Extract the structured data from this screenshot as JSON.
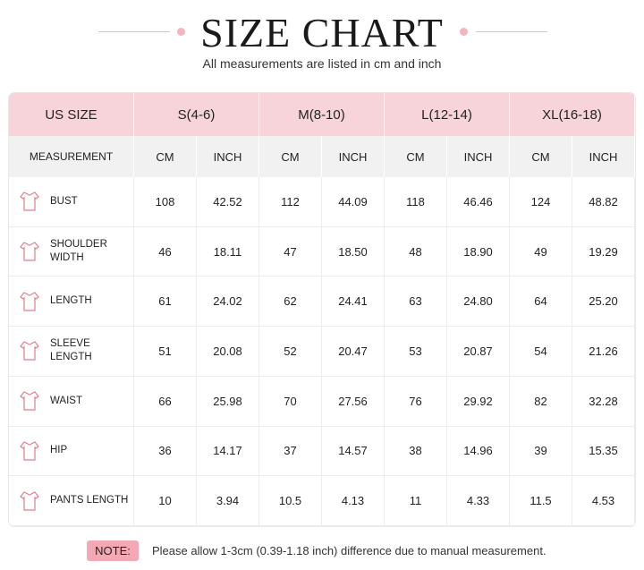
{
  "title": "SIZE CHART",
  "subtitle": "All measurements are listed in cm and inch",
  "table": {
    "header": [
      "US SIZE",
      "S(4-6)",
      "M(8-10)",
      "L(12-14)",
      "XL(16-18)"
    ],
    "subheader": [
      "MEASUREMENT",
      "CM",
      "INCH",
      "CM",
      "INCH",
      "CM",
      "INCH",
      "CM",
      "INCH"
    ],
    "rows": [
      {
        "label": "BUST",
        "values": [
          "108",
          "42.52",
          "112",
          "44.09",
          "118",
          "46.46",
          "124",
          "48.82"
        ]
      },
      {
        "label": "SHOULDER WIDTH",
        "values": [
          "46",
          "18.11",
          "47",
          "18.50",
          "48",
          "18.90",
          "49",
          "19.29"
        ]
      },
      {
        "label": "LENGTH",
        "values": [
          "61",
          "24.02",
          "62",
          "24.41",
          "63",
          "24.80",
          "64",
          "25.20"
        ]
      },
      {
        "label": "SLEEVE LENGTH",
        "values": [
          "51",
          "20.08",
          "52",
          "20.47",
          "53",
          "20.87",
          "54",
          "21.26"
        ]
      },
      {
        "label": "WAIST",
        "values": [
          "66",
          "25.98",
          "70",
          "27.56",
          "76",
          "29.92",
          "82",
          "32.28"
        ]
      },
      {
        "label": "HIP",
        "values": [
          "36",
          "14.17",
          "37",
          "14.57",
          "38",
          "14.96",
          "39",
          "15.35"
        ]
      },
      {
        "label": "PANTS LENGTH",
        "values": [
          "10",
          "3.94",
          "10.5",
          "4.13",
          "11",
          "4.33",
          "11.5",
          "4.53"
        ]
      }
    ]
  },
  "note": {
    "tag": "NOTE:",
    "text": "Please allow 1-3cm (0.39-1.18 inch) difference due to manual measurement."
  }
}
